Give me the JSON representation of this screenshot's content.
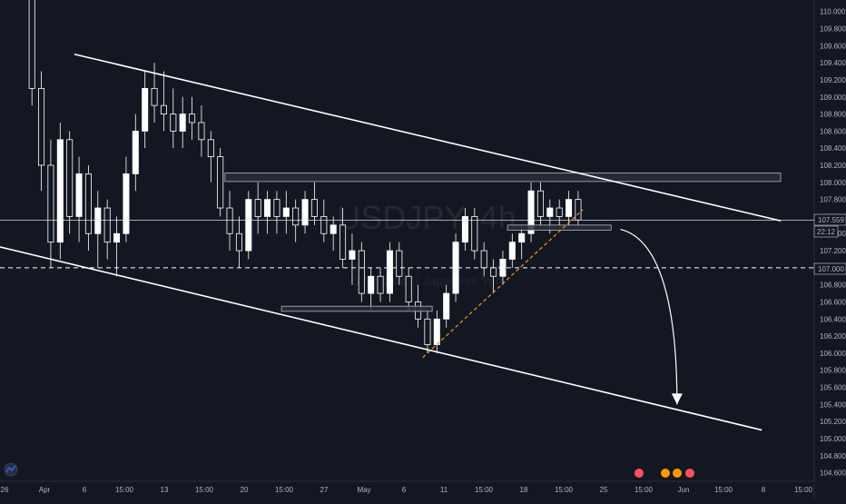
{
  "chart_data": {
    "type": "candlestick",
    "symbol_watermark": "USDJPY, 4h",
    "watermark_subtitle": "U.S. Dollar / Japanese Yen",
    "price_scale": {
      "ticks": [
        "110.000",
        "109.800",
        "109.600",
        "109.400",
        "109.200",
        "109.000",
        "108.800",
        "108.600",
        "108.400",
        "108.200",
        "108.000",
        "107.800",
        "107.600",
        "107.400",
        "107.200",
        "107.000",
        "106.800",
        "106.600",
        "106.400",
        "106.200",
        "106.000",
        "105.800",
        "105.600",
        "105.400",
        "105.200",
        "105.000",
        "104.800",
        "104.600"
      ],
      "ylim": [
        104.5,
        110.05
      ]
    },
    "time_scale": {
      "ticks": [
        "26",
        "Apr",
        "6",
        "15:00",
        "13",
        "15:00",
        "20",
        "15:00",
        "27",
        "May",
        "6",
        "11",
        "15:00",
        "18",
        "15:00",
        "25",
        "15:00",
        "Jun",
        "15:00",
        "8",
        "15:00"
      ]
    },
    "current_price_label": "107.559",
    "countdown_label": "22:12",
    "horizontal_level_label": "107.000",
    "candle_colors": {
      "up": "#ffffff",
      "down": "#ffffff"
    },
    "colors": {
      "background": "#131722",
      "trendline": "#ffffff",
      "support_trendline": "#f7931a",
      "zone_fill": "#2a2e39",
      "zone_border": "#b2b5be"
    },
    "candles": [
      [
        110.2,
        110.3,
        108.9,
        109.1
      ],
      [
        109.1,
        109.3,
        107.9,
        108.2
      ],
      [
        108.2,
        108.5,
        107.0,
        107.3
      ],
      [
        107.3,
        108.7,
        107.1,
        108.5
      ],
      [
        108.5,
        108.6,
        107.4,
        107.6
      ],
      [
        107.6,
        108.3,
        107.3,
        108.1
      ],
      [
        108.1,
        108.2,
        107.2,
        107.4
      ],
      [
        107.4,
        107.9,
        107.0,
        107.7
      ],
      [
        107.7,
        107.8,
        107.1,
        107.3
      ],
      [
        107.3,
        107.6,
        106.9,
        107.4
      ],
      [
        107.4,
        108.3,
        107.3,
        108.1
      ],
      [
        108.1,
        108.8,
        107.9,
        108.6
      ],
      [
        108.6,
        109.3,
        108.4,
        109.1
      ],
      [
        109.1,
        109.4,
        108.7,
        108.9
      ],
      [
        108.9,
        109.3,
        108.6,
        108.8
      ],
      [
        108.8,
        109.1,
        108.4,
        108.6
      ],
      [
        108.6,
        109.0,
        108.4,
        108.8
      ],
      [
        108.8,
        109.0,
        108.5,
        108.7
      ],
      [
        108.7,
        108.9,
        108.3,
        108.5
      ],
      [
        108.5,
        108.6,
        108.0,
        108.3
      ],
      [
        108.3,
        108.4,
        107.6,
        107.7
      ],
      [
        107.7,
        107.9,
        107.2,
        107.4
      ],
      [
        107.4,
        107.6,
        107.0,
        107.2
      ],
      [
        107.2,
        107.9,
        107.1,
        107.8
      ],
      [
        107.8,
        108.0,
        107.4,
        107.6
      ],
      [
        107.6,
        107.9,
        107.4,
        107.8
      ],
      [
        107.8,
        107.9,
        107.4,
        107.6
      ],
      [
        107.6,
        107.9,
        107.4,
        107.7
      ],
      [
        107.7,
        107.8,
        107.3,
        107.5
      ],
      [
        107.5,
        107.9,
        107.4,
        107.8
      ],
      [
        107.8,
        108.0,
        107.5,
        107.6
      ],
      [
        107.6,
        107.8,
        107.3,
        107.4
      ],
      [
        107.4,
        107.6,
        107.2,
        107.5
      ],
      [
        107.5,
        107.7,
        107.0,
        107.1
      ],
      [
        107.1,
        107.4,
        106.8,
        107.2
      ],
      [
        107.2,
        107.3,
        106.6,
        106.7
      ],
      [
        106.7,
        107.0,
        106.5,
        106.9
      ],
      [
        106.9,
        107.0,
        106.6,
        106.7
      ],
      [
        106.7,
        107.3,
        106.6,
        107.2
      ],
      [
        107.2,
        107.3,
        106.8,
        106.9
      ],
      [
        106.9,
        107.0,
        106.5,
        106.6
      ],
      [
        106.6,
        106.8,
        106.3,
        106.4
      ],
      [
        106.4,
        106.5,
        106.0,
        106.1
      ],
      [
        106.1,
        106.5,
        106.0,
        106.4
      ],
      [
        106.4,
        106.8,
        106.3,
        106.7
      ],
      [
        106.7,
        107.4,
        106.6,
        107.3
      ],
      [
        107.3,
        107.7,
        107.2,
        107.6
      ],
      [
        107.6,
        107.7,
        107.1,
        107.2
      ],
      [
        107.2,
        107.3,
        106.9,
        107.0
      ],
      [
        107.0,
        107.1,
        106.7,
        106.9
      ],
      [
        106.9,
        107.2,
        106.8,
        107.1
      ],
      [
        107.1,
        107.4,
        107.0,
        107.3
      ],
      [
        107.3,
        107.5,
        107.1,
        107.4
      ],
      [
        107.4,
        108.0,
        107.3,
        107.9
      ],
      [
        107.9,
        108.0,
        107.5,
        107.6
      ],
      [
        107.6,
        107.8,
        107.4,
        107.7
      ],
      [
        107.7,
        107.8,
        107.5,
        107.6
      ],
      [
        107.6,
        107.9,
        107.5,
        107.8
      ],
      [
        107.8,
        107.9,
        107.5,
        107.56
      ]
    ],
    "drawings": {
      "upper_trendline": {
        "from": {
          "bar": 5,
          "price": 109.5
        },
        "to": {
          "bar": 80,
          "price": 107.55
        }
      },
      "lower_trendline": {
        "from": {
          "bar": -5,
          "price": 107.3
        },
        "to": {
          "bar": 78,
          "price": 105.1
        }
      },
      "support_trendline": {
        "from": {
          "bar": 42,
          "price": 105.95
        },
        "to": {
          "bar": 59,
          "price": 107.68
        }
      },
      "resistance_zone": {
        "from_bar": 21,
        "to_bar": 80,
        "top": 108.11,
        "bottom": 108.01
      },
      "mid_zone": {
        "from_bar": 51,
        "to_bar": 62,
        "top": 107.5,
        "bottom": 107.44
      },
      "low_zone": {
        "from_bar": 27,
        "to_bar": 43,
        "top": 106.55,
        "bottom": 106.49
      },
      "dashed_level": 107.0,
      "projection_arrow": {
        "from": {
          "bar": 63,
          "price": 107.45
        },
        "to": {
          "bar": 69,
          "price": 105.4
        }
      }
    }
  }
}
